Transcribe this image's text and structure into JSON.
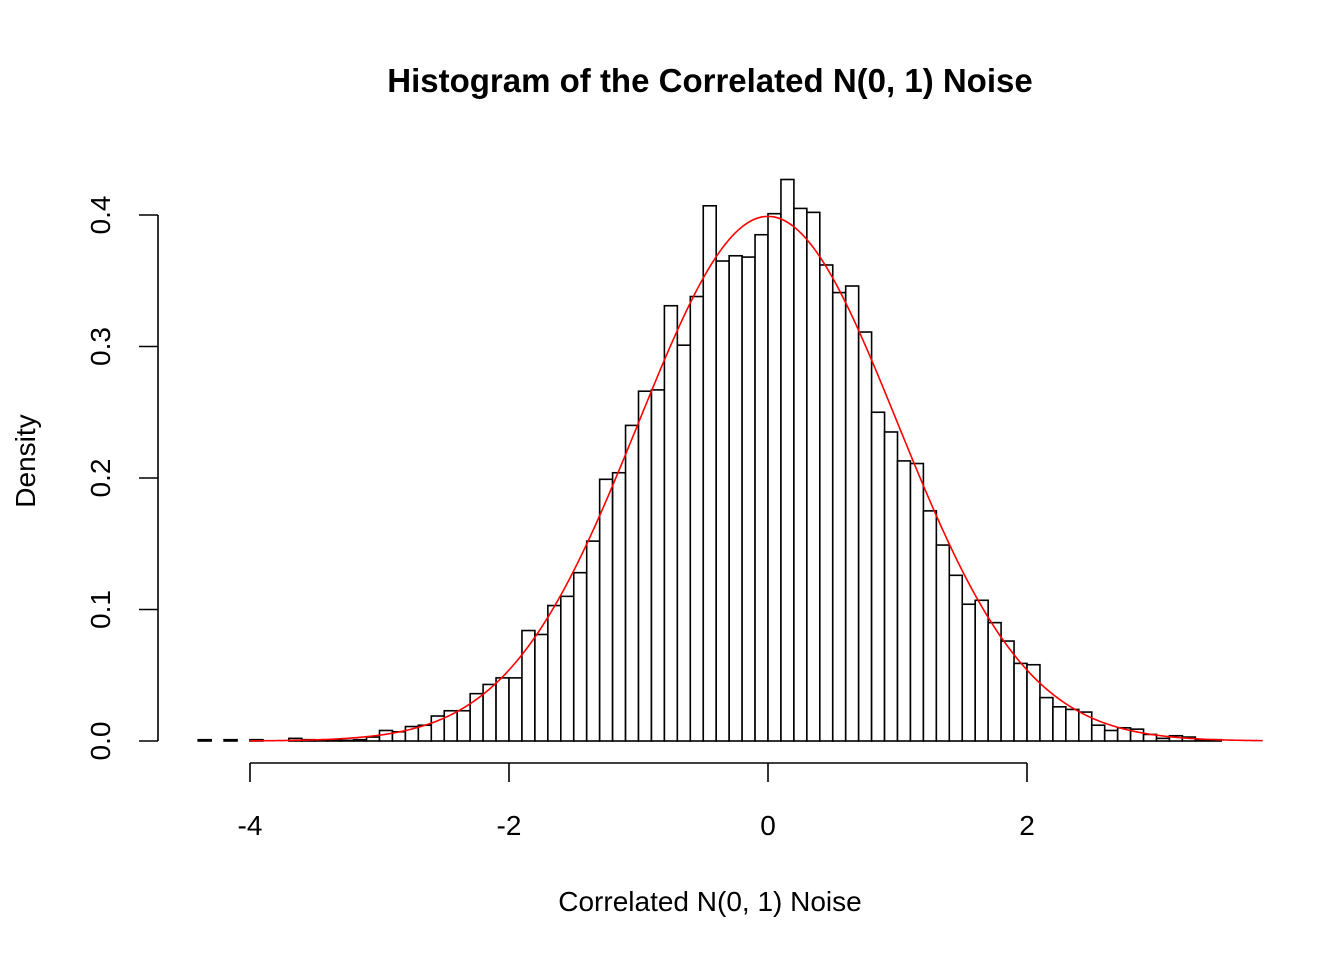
{
  "chart_data": {
    "type": "histogram",
    "title": "Histogram of the Correlated N(0, 1) Noise",
    "xlabel": "Correlated N(0, 1) Noise",
    "ylabel": "Density",
    "xlim": [
      -4.4,
      3.85
    ],
    "ylim": [
      0,
      0.43
    ],
    "x_ticks": [
      "-4",
      "-2",
      "0",
      "2"
    ],
    "x_tick_values": [
      -4,
      -2,
      0,
      2
    ],
    "y_ticks": [
      "0.0",
      "0.1",
      "0.2",
      "0.3",
      "0.4"
    ],
    "y_tick_values": [
      0,
      0.1,
      0.2,
      0.3,
      0.4
    ],
    "grid": false,
    "bin_start": -4.4,
    "bin_width": 0.1,
    "bar_fill": "#ffffff",
    "bar_stroke": "#000000",
    "density": [
      0.001,
      0,
      0.001,
      0,
      0.001,
      0,
      0,
      0.002,
      0.001,
      0.0005,
      0.0005,
      0.0005,
      0.001,
      0.003,
      0.008,
      0.007,
      0.011,
      0.012,
      0.019,
      0.023,
      0.023,
      0.036,
      0.043,
      0.048,
      0.048,
      0.084,
      0.081,
      0.103,
      0.11,
      0.128,
      0.152,
      0.199,
      0.204,
      0.24,
      0.266,
      0.267,
      0.331,
      0.301,
      0.338,
      0.407,
      0.365,
      0.369,
      0.368,
      0.385,
      0.401,
      0.427,
      0.405,
      0.402,
      0.362,
      0.341,
      0.346,
      0.311,
      0.25,
      0.235,
      0.213,
      0.211,
      0.175,
      0.149,
      0.126,
      0.104,
      0.107,
      0.09,
      0.076,
      0.059,
      0.058,
      0.033,
      0.026,
      0.024,
      0.022,
      0.012,
      0.008,
      0.01,
      0.009,
      0.005,
      0.002,
      0.004,
      0.003,
      0.001,
      0.001
    ],
    "overlay": {
      "type": "line",
      "function": "N(0, 1) density",
      "x_range": [
        -4,
        3.82
      ],
      "color": "#ff0000"
    }
  }
}
